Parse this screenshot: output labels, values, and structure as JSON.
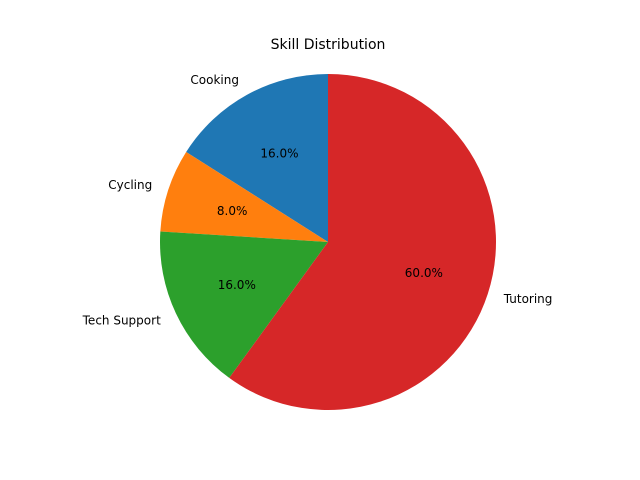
{
  "chart_data": {
    "type": "pie",
    "title": "Skill Distribution",
    "categories": [
      "Cooking",
      "Cycling",
      "Tech Support",
      "Tutoring"
    ],
    "values": [
      16.0,
      8.0,
      16.0,
      60.0
    ],
    "value_labels": [
      "16.0%",
      "8.0%",
      "16.0%",
      "60.0%"
    ],
    "colors": [
      "#1f77b4",
      "#ff7f0e",
      "#2ca02c",
      "#d62728"
    ],
    "start_angle_deg": 90,
    "direction": "counterclockwise",
    "legend": "none"
  }
}
